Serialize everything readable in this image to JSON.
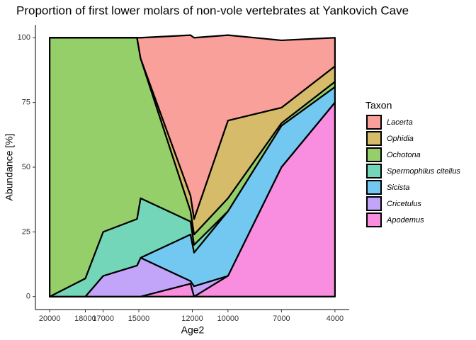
{
  "chart_data": {
    "type": "stacked_area",
    "title": "Proportion of first lower molars of non-vole vertebrates at Yankovich Cave",
    "x_label": "Age2",
    "y_label": "Abundance [%]",
    "legend_title": "Taxon",
    "x": [
      20000,
      18000,
      17000,
      15100,
      14900,
      12100,
      11900,
      10000,
      7000,
      4000
    ],
    "xlim": [
      20800,
      3200
    ],
    "xticks": [
      20000,
      18000,
      17000,
      15000,
      12000,
      10000,
      7000,
      4000
    ],
    "ylim": [
      -5,
      105
    ],
    "yticks": [
      0,
      25,
      50,
      75,
      100
    ],
    "series": [
      {
        "name": "Lacerta",
        "color": "#f9a09b",
        "values": [
          0,
          0,
          0,
          0,
          8,
          62,
          70,
          33,
          26,
          11
        ]
      },
      {
        "name": "Ophidia",
        "color": "#d6bc6a",
        "values": [
          0,
          0,
          0,
          0,
          0,
          6,
          6,
          30,
          6,
          6
        ]
      },
      {
        "name": "Ochotona",
        "color": "#95cf6a",
        "values": [
          100,
          93,
          75,
          70,
          54,
          4,
          4,
          5,
          1,
          2
        ]
      },
      {
        "name": "Spermophilus citellus",
        "color": "#74d6b8",
        "values": [
          0,
          7,
          17,
          18,
          23,
          5,
          3,
          0,
          0,
          0
        ]
      },
      {
        "name": "Sicista",
        "color": "#73c8f1",
        "values": [
          0,
          0,
          0,
          0,
          0,
          18,
          13,
          25,
          16,
          6
        ]
      },
      {
        "name": "Cricetulus",
        "color": "#c2a5f9",
        "values": [
          0,
          0,
          8,
          12,
          15,
          1,
          4,
          0,
          0,
          0
        ]
      },
      {
        "name": "Apodemus",
        "color": "#f98de0",
        "values": [
          0,
          0,
          0,
          0,
          0,
          5,
          0,
          8,
          50,
          75
        ]
      }
    ]
  }
}
